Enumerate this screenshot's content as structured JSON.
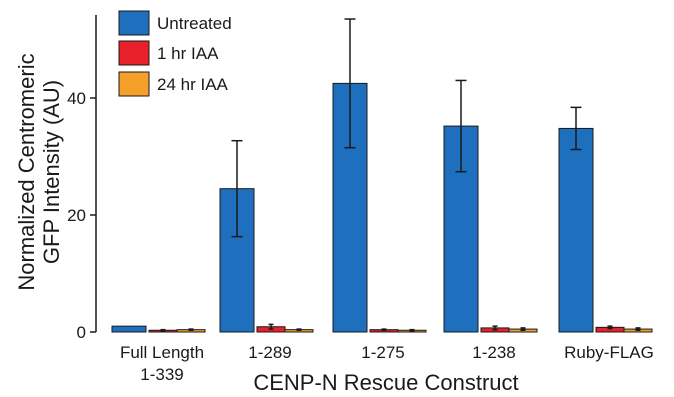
{
  "chart_data": {
    "type": "bar",
    "title": "",
    "xlabel": "CENP-N Rescue Construct",
    "ylabel_lines": [
      "Normalized Centromeric",
      "GFP Intensity (AU)"
    ],
    "ylim": [
      0,
      55
    ],
    "yticks": [
      0,
      20,
      40
    ],
    "categories": [
      [
        "Full Length",
        "1-339"
      ],
      [
        "1-289"
      ],
      [
        "1-275"
      ],
      [
        "1-238"
      ],
      [
        "Ruby-FLAG"
      ]
    ],
    "series": [
      {
        "name": "Untreated",
        "color": "#1f6fbf",
        "values": [
          1.0,
          24.5,
          42.5,
          35.2,
          34.8
        ],
        "errors": [
          0.0,
          8.2,
          11.0,
          7.8,
          3.6
        ]
      },
      {
        "name": "1 hr IAA",
        "color": "#e8202a",
        "values": [
          0.3,
          0.9,
          0.4,
          0.7,
          0.8
        ],
        "errors": [
          0.1,
          0.4,
          0.1,
          0.3,
          0.2
        ]
      },
      {
        "name": "24 hr IAA",
        "color": "#f5a02a",
        "values": [
          0.4,
          0.4,
          0.3,
          0.5,
          0.5
        ],
        "errors": [
          0.1,
          0.1,
          0.1,
          0.2,
          0.2
        ]
      }
    ],
    "grid": false,
    "legend_position": "top-left"
  }
}
